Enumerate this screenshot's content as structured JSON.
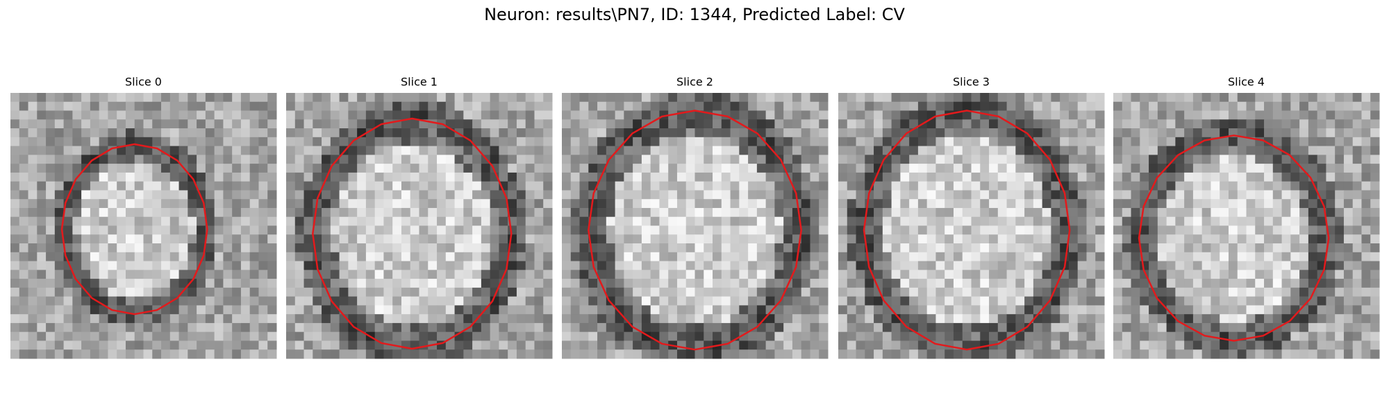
{
  "title": "Neuron: results\\PN7, ID: 1344, Predicted Label: CV",
  "panels": [
    {
      "title": "Slice 0"
    },
    {
      "title": "Slice 1"
    },
    {
      "title": "Slice 2"
    },
    {
      "title": "Slice 3"
    },
    {
      "title": "Slice 4"
    }
  ]
}
